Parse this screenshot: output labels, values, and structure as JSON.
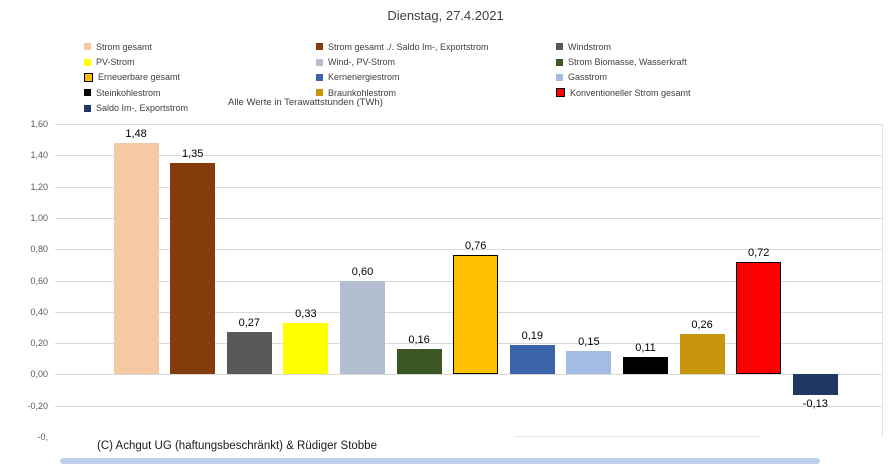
{
  "title": "Dienstag, 27.4.2021",
  "note": "Alle Werte in Terawattstunden (TWh)",
  "footer": "(C) Achgut UG (haftungsbeschränkt) & Rüdiger Stobbe",
  "colors": {
    "grid": "#D9D9D9",
    "axis_text": "#595959",
    "title_text": "#404040",
    "value_label": "#000000",
    "scrollbar": "#BDD2EA"
  },
  "chart_data": {
    "type": "bar",
    "title": "Dienstag, 27.4.2021",
    "subtitle": "Alle Werte in Terawattstunden (TWh)",
    "unit": "TWh",
    "ylim": [
      -0.4,
      1.6
    ],
    "ytick_step": 0.2,
    "grid": true,
    "legend_position": "top",
    "yticks": [
      {
        "label": "1,60",
        "value": 1.6
      },
      {
        "label": "1,40",
        "value": 1.4
      },
      {
        "label": "1,20",
        "value": 1.2
      },
      {
        "label": "1,00",
        "value": 1.0
      },
      {
        "label": "0,80",
        "value": 0.8
      },
      {
        "label": "0,60",
        "value": 0.6
      },
      {
        "label": "0,40",
        "value": 0.4
      },
      {
        "label": "0,20",
        "value": 0.2
      },
      {
        "label": "0,00",
        "value": 0.0
      },
      {
        "label": "-0,20",
        "value": -0.2
      },
      {
        "label": "-0,",
        "value": -0.4,
        "truncated": true
      }
    ],
    "series": [
      {
        "name": "Strom gesamt",
        "value": 1.48,
        "label": "1,48",
        "color": "#F6C9A5",
        "black_border": false
      },
      {
        "name": "Strom gesamt ./. Saldo Im-, Exportstrom",
        "value": 1.35,
        "label": "1,35",
        "color": "#843C0C",
        "black_border": false
      },
      {
        "name": "Windstrom",
        "value": 0.27,
        "label": "0,27",
        "color": "#595959",
        "black_border": false
      },
      {
        "name": "PV-Strom",
        "value": 0.33,
        "label": "0,33",
        "color": "#FFFF00",
        "black_border": false
      },
      {
        "name": "Wind-, PV-Strom",
        "value": 0.6,
        "label": "0,60",
        "color": "#B3BFD0",
        "black_border": false
      },
      {
        "name": "Strom Biomasse, Wasserkraft",
        "value": 0.16,
        "label": "0,16",
        "color": "#3A5724",
        "black_border": false
      },
      {
        "name": "Erneuerbare gesamt",
        "value": 0.76,
        "label": "0,76",
        "color": "#FFC000",
        "black_border": true
      },
      {
        "name": "Kernenergiestrom",
        "value": 0.19,
        "label": "0,19",
        "color": "#3B63A8",
        "black_border": false
      },
      {
        "name": "Gasstrom",
        "value": 0.15,
        "label": "0,15",
        "color": "#A4BCE3",
        "black_border": false
      },
      {
        "name": "Steinkohlestrom",
        "value": 0.11,
        "label": "0,11",
        "color": "#000000",
        "black_border": false
      },
      {
        "name": "Braunkohlestrom",
        "value": 0.26,
        "label": "0,26",
        "color": "#C8960C",
        "black_border": false
      },
      {
        "name": "Konventioneller Strom gesamt",
        "value": 0.72,
        "label": "0,72",
        "color": "#FF0000",
        "black_border": true
      },
      {
        "name": "Saldo Im-, Exportstrom",
        "value": -0.13,
        "label": "-0,13",
        "color": "#1F3864",
        "black_border": false
      }
    ]
  }
}
